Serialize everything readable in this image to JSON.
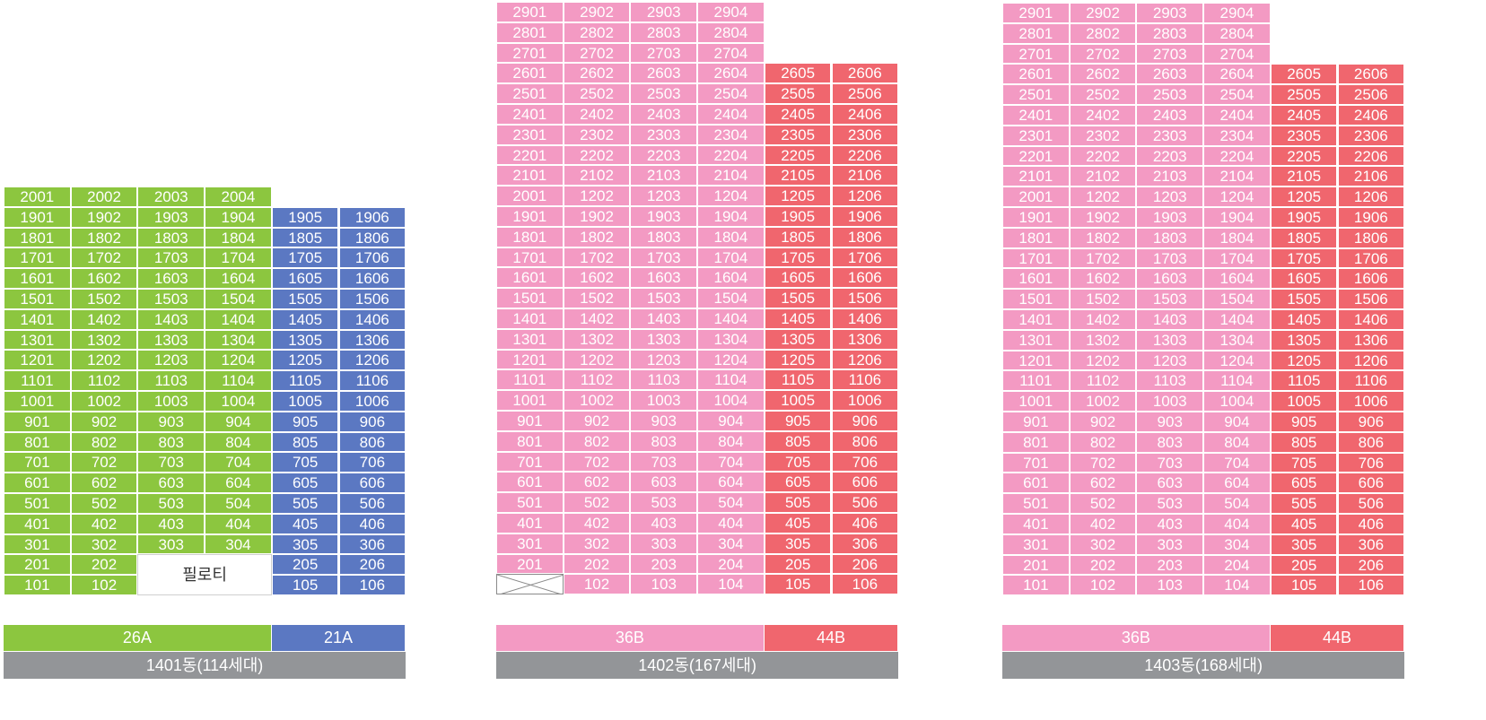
{
  "colors": {
    "green": "#8cc63f",
    "blue": "#5b78c2",
    "pink": "#f39ac3",
    "red": "#f0666e",
    "gray": "#939598"
  },
  "buildings": [
    {
      "name": "1401동(114세대)",
      "top_floor": 20,
      "columns": [
        {
          "color": "green",
          "min_floor": 1,
          "max_floor": 20
        },
        {
          "color": "green",
          "min_floor": 1,
          "max_floor": 20
        },
        {
          "color": "green",
          "min_floor": 3,
          "max_floor": 20
        },
        {
          "color": "green",
          "min_floor": 3,
          "max_floor": 20
        },
        {
          "color": "blue",
          "min_floor": 1,
          "max_floor": 19
        },
        {
          "color": "blue",
          "min_floor": 1,
          "max_floor": 19
        }
      ],
      "special_units": {
        "2001": "2001",
        "2002": "2002",
        "2003": "2003",
        "2004": "2004"
      },
      "piloti": {
        "label": "필로티",
        "col_start": 3,
        "col_span": 2,
        "floor_from": 1,
        "floor_to": 2
      },
      "empty_cells": [],
      "types": [
        {
          "label": "26A",
          "color": "green",
          "span": 4
        },
        {
          "label": "21A",
          "color": "blue",
          "span": 2
        }
      ]
    },
    {
      "name": "1402동(167세대)",
      "top_floor": 29,
      "columns": [
        {
          "color": "pink",
          "min_floor": 1,
          "max_floor": 29
        },
        {
          "color": "pink",
          "min_floor": 1,
          "max_floor": 29
        },
        {
          "color": "pink",
          "min_floor": 1,
          "max_floor": 29
        },
        {
          "color": "pink",
          "min_floor": 1,
          "max_floor": 29
        },
        {
          "color": "red",
          "min_floor": 1,
          "max_floor": 26
        },
        {
          "color": "red",
          "min_floor": 1,
          "max_floor": 26
        }
      ],
      "special_units": {
        "2002": "1202",
        "2003": "1203",
        "2004": "1204",
        "2005": "1205",
        "2006": "1206"
      },
      "piloti": null,
      "empty_cells": [
        {
          "col": 1,
          "floor": 1
        }
      ],
      "types": [
        {
          "label": "36B",
          "color": "pink",
          "span": 4
        },
        {
          "label": "44B",
          "color": "red",
          "span": 2
        }
      ]
    },
    {
      "name": "1403동(168세대)",
      "top_floor": 29,
      "columns": [
        {
          "color": "pink",
          "min_floor": 1,
          "max_floor": 29
        },
        {
          "color": "pink",
          "min_floor": 1,
          "max_floor": 29
        },
        {
          "color": "pink",
          "min_floor": 1,
          "max_floor": 29
        },
        {
          "color": "pink",
          "min_floor": 1,
          "max_floor": 29
        },
        {
          "color": "red",
          "min_floor": 1,
          "max_floor": 26
        },
        {
          "color": "red",
          "min_floor": 1,
          "max_floor": 26
        }
      ],
      "special_units": {
        "2002": "1202",
        "2003": "1203",
        "2004": "1204",
        "2005": "1205",
        "2006": "1206"
      },
      "piloti": null,
      "empty_cells": [],
      "types": [
        {
          "label": "36B",
          "color": "pink",
          "span": 4
        },
        {
          "label": "44B",
          "color": "red",
          "span": 2
        }
      ]
    }
  ]
}
